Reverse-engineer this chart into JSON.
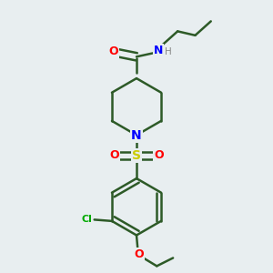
{
  "bg_color": "#e8eef0",
  "bond_color": "#2d5a27",
  "atom_colors": {
    "O": "#ff0000",
    "N": "#0000ff",
    "S": "#cccc00",
    "Cl": "#00aa00",
    "H": "#888888"
  },
  "figsize": [
    3.0,
    3.0
  ],
  "dpi": 100
}
